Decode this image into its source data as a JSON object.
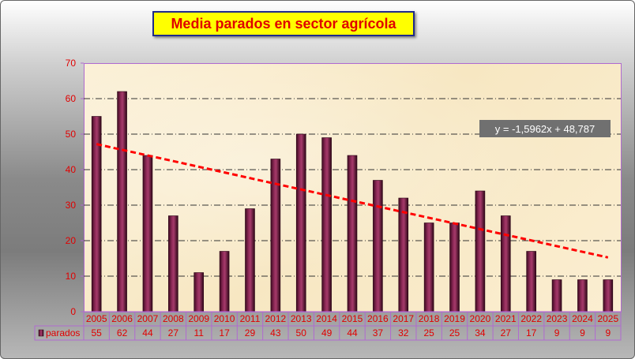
{
  "chart_data": {
    "type": "bar",
    "title": "Media parados en sector agrícola",
    "categories": [
      "2005",
      "2006",
      "2007",
      "2008",
      "2009",
      "2010",
      "2011",
      "2012",
      "2013",
      "2014",
      "2015",
      "2016",
      "2017",
      "2018",
      "2019",
      "2020",
      "2021",
      "2022",
      "2023",
      "2024",
      "2025"
    ],
    "series": [
      {
        "name": "parados",
        "values": [
          55,
          62,
          44,
          27,
          11,
          17,
          29,
          43,
          50,
          49,
          44,
          37,
          32,
          25,
          25,
          34,
          27,
          17,
          9,
          9,
          9
        ],
        "color": "#6a1238"
      }
    ],
    "ylim": [
      0,
      70
    ],
    "yticks": [
      0,
      10,
      20,
      30,
      40,
      50,
      60,
      70
    ],
    "grid": true,
    "data_table": true,
    "trendline": {
      "type": "linear",
      "equation": "y = -1,5962x + 48,787",
      "slope": -1.5962,
      "intercept": 48.787,
      "color": "#ff0000"
    },
    "colors": {
      "text": "#e00000",
      "title_bg": "#ffff00",
      "title_border": "#1f2a8a",
      "plot_bg": "#f8e9c8",
      "axis": "#b06ad0",
      "grid": "#333333"
    }
  }
}
